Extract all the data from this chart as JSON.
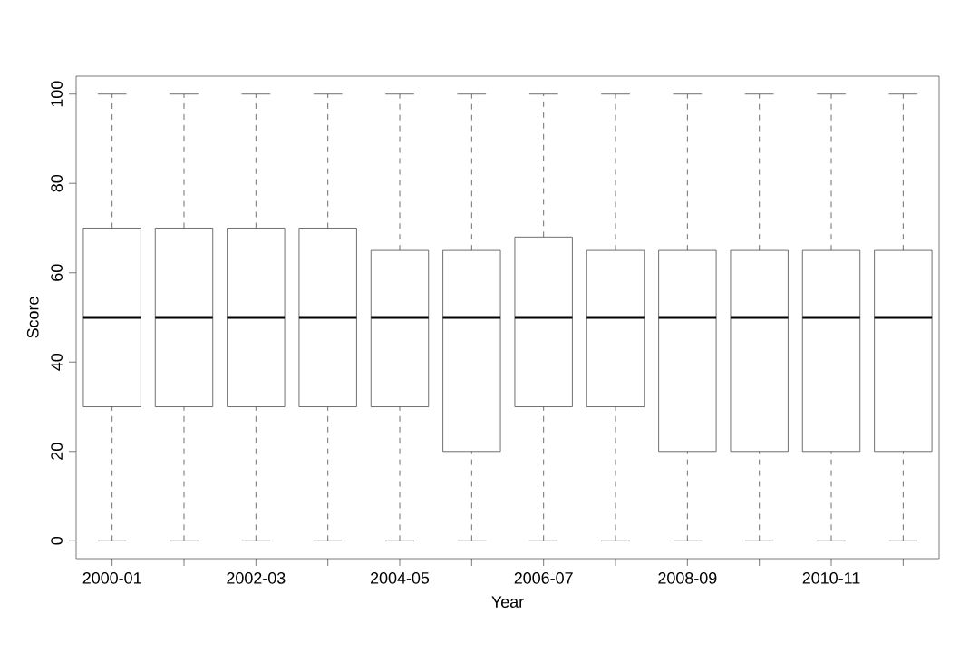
{
  "chart_data": {
    "type": "box",
    "xlabel": "Year",
    "ylabel": "Score",
    "categories": [
      "2000-01",
      null,
      "2002-03",
      null,
      "2004-05",
      null,
      "2006-07",
      null,
      "2008-09",
      null,
      "2010-11",
      null
    ],
    "boxes": [
      {
        "low": 0,
        "q1": 30,
        "median": 50,
        "q3": 70,
        "high": 100
      },
      {
        "low": 0,
        "q1": 30,
        "median": 50,
        "q3": 70,
        "high": 100
      },
      {
        "low": 0,
        "q1": 30,
        "median": 50,
        "q3": 70,
        "high": 100
      },
      {
        "low": 0,
        "q1": 30,
        "median": 50,
        "q3": 70,
        "high": 100
      },
      {
        "low": 0,
        "q1": 30,
        "median": 50,
        "q3": 65,
        "high": 100
      },
      {
        "low": 0,
        "q1": 20,
        "median": 50,
        "q3": 65,
        "high": 100
      },
      {
        "low": 0,
        "q1": 30,
        "median": 50,
        "q3": 68,
        "high": 100
      },
      {
        "low": 0,
        "q1": 30,
        "median": 50,
        "q3": 65,
        "high": 100
      },
      {
        "low": 0,
        "q1": 20,
        "median": 50,
        "q3": 65,
        "high": 100
      },
      {
        "low": 0,
        "q1": 20,
        "median": 50,
        "q3": 65,
        "high": 100
      },
      {
        "low": 0,
        "q1": 20,
        "median": 50,
        "q3": 65,
        "high": 100
      },
      {
        "low": 0,
        "q1": 20,
        "median": 50,
        "q3": 65,
        "high": 100
      }
    ],
    "ylim": [
      -4,
      104
    ],
    "yticks": [
      0,
      20,
      40,
      60,
      80,
      100
    ],
    "line_style": "dashed"
  }
}
